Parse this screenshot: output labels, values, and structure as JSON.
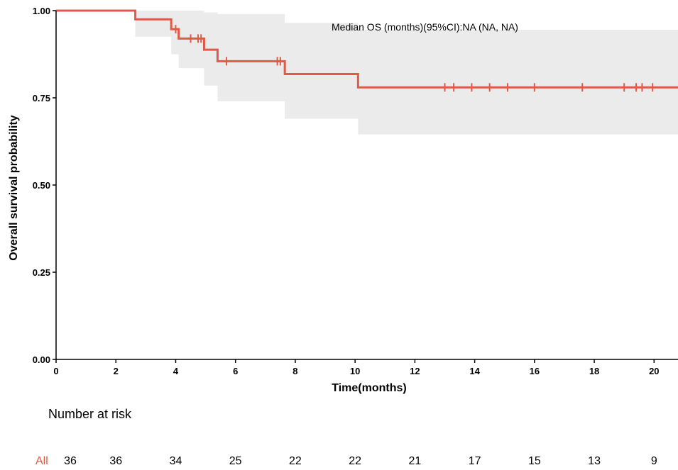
{
  "chart_data": {
    "type": "line",
    "subtype": "kaplan-meier",
    "xlabel": "Time(months)",
    "ylabel": "Overall survival probability",
    "xlim": [
      0,
      20.8
    ],
    "ylim": [
      0,
      1
    ],
    "x_ticks": [
      "0",
      "2",
      "4",
      "6",
      "8",
      "10",
      "12",
      "14",
      "16",
      "18",
      "20"
    ],
    "y_ticks": [
      "0.00",
      "0.25",
      "0.50",
      "0.75",
      "1.00"
    ],
    "grid": false,
    "annotation": "Median OS (months)(95%CI):NA (NA, NA)",
    "series": [
      {
        "color": "#e05a47",
        "steps": [
          {
            "x": 0,
            "y": 1.0
          },
          {
            "x": 2.65,
            "y": 0.975
          },
          {
            "x": 3.85,
            "y": 0.947
          },
          {
            "x": 4.1,
            "y": 0.92
          },
          {
            "x": 4.95,
            "y": 0.888
          },
          {
            "x": 5.4,
            "y": 0.855
          },
          {
            "x": 7.65,
            "y": 0.818
          },
          {
            "x": 10.1,
            "y": 0.78
          }
        ],
        "x_end": 20.8,
        "ci": [
          {
            "x": 0,
            "lower": 1.0,
            "upper": 1.0
          },
          {
            "x": 2.65,
            "lower": 0.925,
            "upper": 1.0
          },
          {
            "x": 3.85,
            "lower": 0.875,
            "upper": 1.0
          },
          {
            "x": 4.1,
            "lower": 0.835,
            "upper": 1.0
          },
          {
            "x": 4.95,
            "lower": 0.785,
            "upper": 0.995
          },
          {
            "x": 5.4,
            "lower": 0.74,
            "upper": 0.99
          },
          {
            "x": 7.65,
            "lower": 0.69,
            "upper": 0.965
          },
          {
            "x": 10.1,
            "lower": 0.645,
            "upper": 0.945
          }
        ],
        "censored": [
          {
            "x": 4.0,
            "y": 0.947
          },
          {
            "x": 4.5,
            "y": 0.92
          },
          {
            "x": 4.75,
            "y": 0.92
          },
          {
            "x": 4.85,
            "y": 0.92
          },
          {
            "x": 5.7,
            "y": 0.855
          },
          {
            "x": 7.4,
            "y": 0.855
          },
          {
            "x": 7.5,
            "y": 0.855
          },
          {
            "x": 13.0,
            "y": 0.78
          },
          {
            "x": 13.3,
            "y": 0.78
          },
          {
            "x": 13.9,
            "y": 0.78
          },
          {
            "x": 14.5,
            "y": 0.78
          },
          {
            "x": 15.1,
            "y": 0.78
          },
          {
            "x": 16.0,
            "y": 0.78
          },
          {
            "x": 17.6,
            "y": 0.78
          },
          {
            "x": 19.0,
            "y": 0.78
          },
          {
            "x": 19.4,
            "y": 0.78
          },
          {
            "x": 19.6,
            "y": 0.78
          },
          {
            "x": 19.95,
            "y": 0.78
          }
        ]
      }
    ],
    "risk_table": {
      "title": "Number at risk",
      "strata": "All",
      "strata_color": "#e05a47",
      "times": [
        0,
        2,
        4,
        6,
        8,
        10,
        12,
        14,
        16,
        18,
        20
      ],
      "values": [
        "36",
        "36",
        "34",
        "25",
        "22",
        "22",
        "21",
        "17",
        "15",
        "13",
        "9"
      ]
    }
  },
  "colors": {
    "line": "#e05a47",
    "ci_band": "#ebebeb",
    "axis": "#000000"
  }
}
